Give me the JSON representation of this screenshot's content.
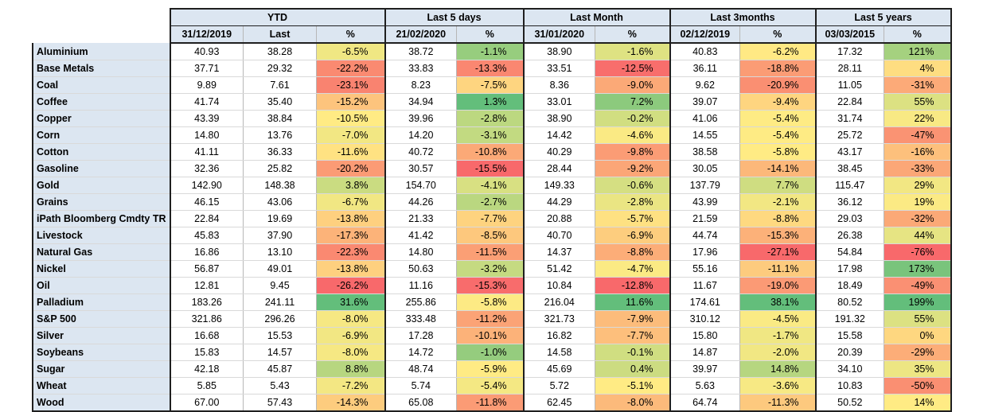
{
  "groups": [
    "YTD",
    "Last 5 days",
    "Last Month",
    "Last 3months",
    "Last 5 years"
  ],
  "subheaders": [
    "31/12/2019",
    "Last",
    "%",
    "21/02/2020",
    "%",
    "31/01/2020",
    "%",
    "02/12/2019",
    "%",
    "03/03/2015",
    "%"
  ],
  "rows": [
    [
      "Aluminium",
      "40.93",
      "38.28",
      "-6.5%",
      "38.72",
      "-1.1%",
      "38.90",
      "-1.6%",
      "40.83",
      "-6.2%",
      "17.32",
      "121%"
    ],
    [
      "Base Metals",
      "37.71",
      "29.32",
      "-22.2%",
      "33.83",
      "-13.3%",
      "33.51",
      "-12.5%",
      "36.11",
      "-18.8%",
      "28.11",
      "4%"
    ],
    [
      "Coal",
      "9.89",
      "7.61",
      "-23.1%",
      "8.23",
      "-7.5%",
      "8.36",
      "-9.0%",
      "9.62",
      "-20.9%",
      "11.05",
      "-31%"
    ],
    [
      "Coffee",
      "41.74",
      "35.40",
      "-15.2%",
      "34.94",
      "1.3%",
      "33.01",
      "7.2%",
      "39.07",
      "-9.4%",
      "22.84",
      "55%"
    ],
    [
      "Copper",
      "43.39",
      "38.84",
      "-10.5%",
      "39.96",
      "-2.8%",
      "38.90",
      "-0.2%",
      "41.06",
      "-5.4%",
      "31.74",
      "22%"
    ],
    [
      "Corn",
      "14.80",
      "13.76",
      "-7.0%",
      "14.20",
      "-3.1%",
      "14.42",
      "-4.6%",
      "14.55",
      "-5.4%",
      "25.72",
      "-47%"
    ],
    [
      "Cotton",
      "41.11",
      "36.33",
      "-11.6%",
      "40.72",
      "-10.8%",
      "40.29",
      "-9.8%",
      "38.58",
      "-5.8%",
      "43.17",
      "-16%"
    ],
    [
      "Gasoline",
      "32.36",
      "25.82",
      "-20.2%",
      "30.57",
      "-15.5%",
      "28.44",
      "-9.2%",
      "30.05",
      "-14.1%",
      "38.45",
      "-33%"
    ],
    [
      "Gold",
      "142.90",
      "148.38",
      "3.8%",
      "154.70",
      "-4.1%",
      "149.33",
      "-0.6%",
      "137.79",
      "7.7%",
      "115.47",
      "29%"
    ],
    [
      "Grains",
      "46.15",
      "43.06",
      "-6.7%",
      "44.26",
      "-2.7%",
      "44.29",
      "-2.8%",
      "43.99",
      "-2.1%",
      "36.12",
      "19%"
    ],
    [
      "iPath Bloomberg Cmdty TR",
      "22.84",
      "19.69",
      "-13.8%",
      "21.33",
      "-7.7%",
      "20.88",
      "-5.7%",
      "21.59",
      "-8.8%",
      "29.03",
      "-32%"
    ],
    [
      "Livestock",
      "45.83",
      "37.90",
      "-17.3%",
      "41.42",
      "-8.5%",
      "40.70",
      "-6.9%",
      "44.74",
      "-15.3%",
      "26.38",
      "44%"
    ],
    [
      "Natural Gas",
      "16.86",
      "13.10",
      "-22.3%",
      "14.80",
      "-11.5%",
      "14.37",
      "-8.8%",
      "17.96",
      "-27.1%",
      "54.84",
      "-76%"
    ],
    [
      "Nickel",
      "56.87",
      "49.01",
      "-13.8%",
      "50.63",
      "-3.2%",
      "51.42",
      "-4.7%",
      "55.16",
      "-11.1%",
      "17.98",
      "173%"
    ],
    [
      "Oil",
      "12.81",
      "9.45",
      "-26.2%",
      "11.16",
      "-15.3%",
      "10.84",
      "-12.8%",
      "11.67",
      "-19.0%",
      "18.49",
      "-49%"
    ],
    [
      "Palladium",
      "183.26",
      "241.11",
      "31.6%",
      "255.86",
      "-5.8%",
      "216.04",
      "11.6%",
      "174.61",
      "38.1%",
      "80.52",
      "199%"
    ],
    [
      "S&P 500",
      "321.86",
      "296.26",
      "-8.0%",
      "333.48",
      "-11.2%",
      "321.73",
      "-7.9%",
      "310.12",
      "-4.5%",
      "191.32",
      "55%"
    ],
    [
      "Silver",
      "16.68",
      "15.53",
      "-6.9%",
      "17.28",
      "-10.1%",
      "16.82",
      "-7.7%",
      "15.80",
      "-1.7%",
      "15.58",
      "0%"
    ],
    [
      "Soybeans",
      "15.83",
      "14.57",
      "-8.0%",
      "14.72",
      "-1.0%",
      "14.58",
      "-0.1%",
      "14.87",
      "-2.0%",
      "20.39",
      "-29%"
    ],
    [
      "Sugar",
      "42.18",
      "45.87",
      "8.8%",
      "48.74",
      "-5.9%",
      "45.69",
      "0.4%",
      "39.97",
      "14.8%",
      "34.10",
      "35%"
    ],
    [
      "Wheat",
      "5.85",
      "5.43",
      "-7.2%",
      "5.74",
      "-5.4%",
      "5.72",
      "-5.1%",
      "5.63",
      "-3.6%",
      "10.83",
      "-50%"
    ],
    [
      "Wood",
      "67.00",
      "57.43",
      "-14.3%",
      "65.08",
      "-11.8%",
      "62.45",
      "-8.0%",
      "64.74",
      "-11.3%",
      "50.52",
      "14%"
    ]
  ]
}
